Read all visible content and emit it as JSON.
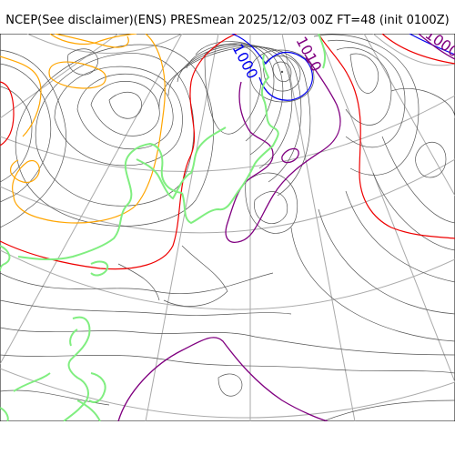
{
  "title": "NCEP(See disclaimer)(ENS) PRESmean 2025/12/03 00Z FT=48 (init 0100Z)",
  "contour_labels": [
    {
      "text": "1000",
      "color": "#0000ee"
    },
    {
      "text": "1010",
      "color": "#800080"
    },
    {
      "text": "1000",
      "color": "#800080"
    }
  ],
  "colors": {
    "isobar": "#555555",
    "graticule": "#aaaaaa",
    "coastline": "#80ee80",
    "blue_contour": "#0000ee",
    "purple_contour": "#800080",
    "red_contour": "#ee0000",
    "orange_contour": "#ffa500"
  }
}
